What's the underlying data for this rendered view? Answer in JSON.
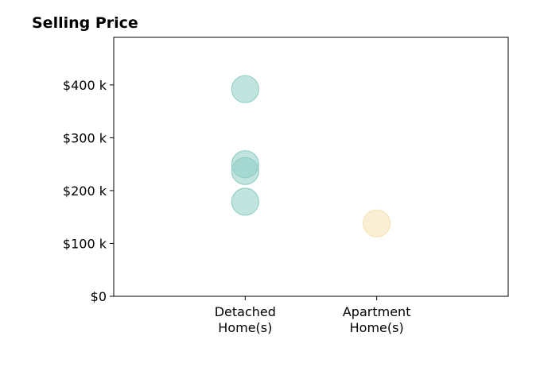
{
  "chart_data": {
    "type": "scatter",
    "title": "Selling Price",
    "xlabel": "",
    "ylabel": "",
    "categories": [
      [
        "Detached",
        "Home(s)"
      ],
      [
        "Apartment",
        "Home(s)"
      ]
    ],
    "yticks": [
      {
        "value": 0,
        "label": "$0"
      },
      {
        "value": 100000,
        "label": "$100 k"
      },
      {
        "value": 200000,
        "label": "$200 k"
      },
      {
        "value": 300000,
        "label": "$300 k"
      },
      {
        "value": 400000,
        "label": "$400 k"
      }
    ],
    "ylim": [
      0,
      490000
    ],
    "xlim": [
      -1,
      2
    ],
    "grid": false,
    "series": [
      {
        "category_index": 0,
        "color": "#8ecdc4",
        "values": [
          392000,
          250000,
          237000,
          179000
        ]
      },
      {
        "category_index": 1,
        "color": "#f6e2b3",
        "values": [
          138000
        ]
      }
    ],
    "marker_opacity": 0.55
  }
}
